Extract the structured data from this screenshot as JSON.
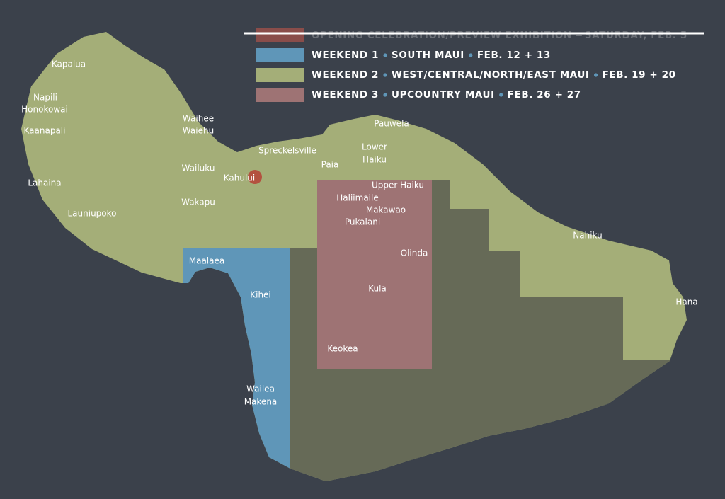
{
  "legend": [
    {
      "label": "OPENING CELEBRATION/PREVIEW EXHIBITION",
      "date": "SATURDAY, FEB. 5"
    },
    {
      "label": "WEEKEND 1",
      "area": "SOUTH MAUI",
      "date": "FEB. 12 + 13"
    },
    {
      "label": "WEEKEND 2",
      "area": "WEST/CENTRAL/NORTH/EAST MAUI",
      "date": "FEB. 19 + 20"
    },
    {
      "label": "WEEKEND 3",
      "area": "UPCOUNTRY MAUI",
      "date": "FEB. 26 + 27"
    }
  ],
  "places": [
    "Kapalua",
    "Napili",
    "Honokowai",
    "Kaanapali",
    "Lahaina",
    "Launiupoko",
    "Waihee",
    "Waiehu",
    "Wailuku",
    "Wakapu",
    "Kahului",
    "Spreckelsville",
    "Paia",
    "Pauwela",
    "Lower",
    "Haiku",
    "Upper Haiku",
    "Haliimaile",
    "Makawao",
    "Pukalani",
    "Olinda",
    "Kula",
    "Keokea",
    "Maalaea",
    "Kihei",
    "Wailea",
    "Makena",
    "Nahiku",
    "Hana"
  ]
}
